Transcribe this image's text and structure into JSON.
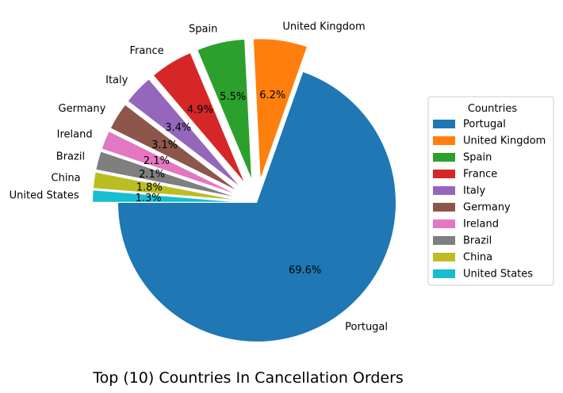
{
  "chart_data": {
    "type": "pie",
    "title": "Top (10) Countries In Cancellation Orders",
    "legend": {
      "title": "Countries",
      "placement": "right"
    },
    "slices": [
      {
        "label": "Portugal",
        "pct": 69.6,
        "pct_label": "69.6%",
        "color": "#1f77b4",
        "exploded": false
      },
      {
        "label": "United Kingdom",
        "pct": 6.2,
        "pct_label": "6.2%",
        "color": "#ff7f0e",
        "exploded": true
      },
      {
        "label": "Spain",
        "pct": 5.5,
        "pct_label": "5.5%",
        "color": "#2ca02c",
        "exploded": true
      },
      {
        "label": "France",
        "pct": 4.9,
        "pct_label": "4.9%",
        "color": "#d62728",
        "exploded": true
      },
      {
        "label": "Italy",
        "pct": 3.4,
        "pct_label": "3.4%",
        "color": "#9467bd",
        "exploded": true
      },
      {
        "label": "Germany",
        "pct": 3.1,
        "pct_label": "3.1%",
        "color": "#8c564b",
        "exploded": true
      },
      {
        "label": "Ireland",
        "pct": 2.1,
        "pct_label": "2.1%",
        "color": "#e377c2",
        "exploded": true
      },
      {
        "label": "Brazil",
        "pct": 2.1,
        "pct_label": "2.1%",
        "color": "#7f7f7f",
        "exploded": true
      },
      {
        "label": "China",
        "pct": 1.8,
        "pct_label": "1.8%",
        "color": "#bcbd22",
        "exploded": true
      },
      {
        "label": "United States",
        "pct": 1.3,
        "pct_label": "1.3%",
        "color": "#17becf",
        "exploded": true
      }
    ]
  }
}
